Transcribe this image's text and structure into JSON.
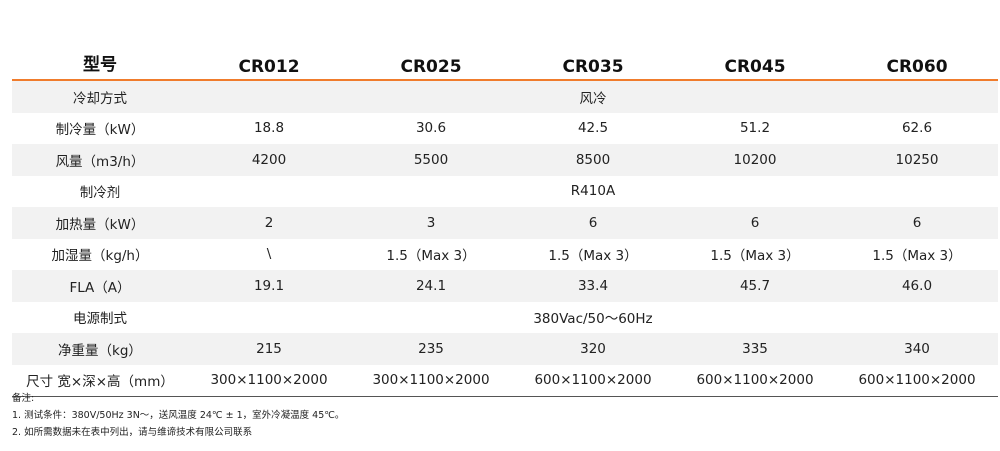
{
  "table": {
    "label_header": "型号",
    "models": [
      "CR012",
      "CR025",
      "CR035",
      "CR045",
      "CR060"
    ],
    "rows": [
      {
        "label": "冷却方式",
        "span": true,
        "value": "风冷"
      },
      {
        "label": "制冷量（kW）",
        "span": false,
        "values": [
          "18.8",
          "30.6",
          "42.5",
          "51.2",
          "62.6"
        ]
      },
      {
        "label": "风量（m3/h）",
        "span": false,
        "values": [
          "4200",
          "5500",
          "8500",
          "10200",
          "10250"
        ]
      },
      {
        "label": "制冷剂",
        "span": true,
        "value": "R410A"
      },
      {
        "label": "加热量（kW）",
        "span": false,
        "values": [
          "2",
          "3",
          "6",
          "6",
          "6"
        ]
      },
      {
        "label": "加湿量（kg/h）",
        "span": false,
        "values": [
          "\\",
          "1.5（Max 3）",
          "1.5（Max 3）",
          "1.5（Max 3）",
          "1.5（Max 3）"
        ]
      },
      {
        "label": "FLA（A）",
        "span": false,
        "values": [
          "19.1",
          "24.1",
          "33.4",
          "45.7",
          "46.0"
        ]
      },
      {
        "label": "电源制式",
        "span": true,
        "value": "380Vac/50～60Hz"
      },
      {
        "label": "净重量（kg）",
        "span": false,
        "values": [
          "215",
          "235",
          "320",
          "335",
          "340"
        ]
      },
      {
        "label": "尺寸 宽×深×高（mm）",
        "span": false,
        "values": [
          "300×1100×2000",
          "300×1100×2000",
          "600×1100×2000",
          "600×1100×2000",
          "600×1100×2000"
        ]
      }
    ]
  },
  "notes": {
    "title": "备注:",
    "items": [
      "1. 测试条件：380V/50Hz 3N～，送风温度 24℃ ± 1，室外冷凝温度 45℃。",
      "2. 如所需数据未在表中列出，请与维谛技术有限公司联系"
    ]
  },
  "colors": {
    "header_rule": "#f07c2c",
    "row_shade": "#f2f2f2",
    "bottom_rule": "#555555"
  }
}
